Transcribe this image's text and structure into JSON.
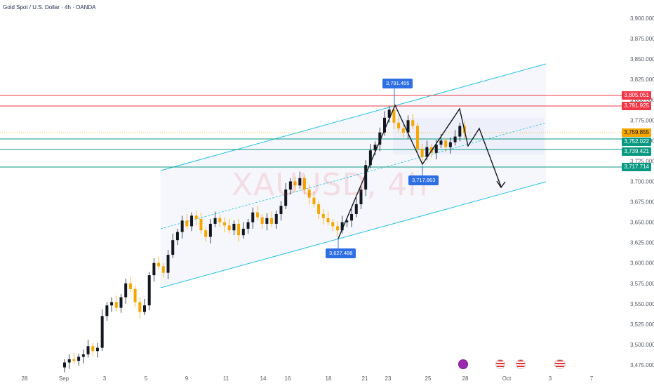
{
  "header": {
    "title": "Gold Spot / U.S. Dollar · 4h · OANDA"
  },
  "watermark": "XAUUSD, 4h",
  "colors": {
    "up": "#131722",
    "down": "#f7a600",
    "channel": "#22c3dd",
    "resistance": "#f23645",
    "support": "#089981",
    "callout": "#2f6fe4",
    "current": "#f7a600"
  },
  "chart_data": {
    "type": "candlestick",
    "symbol": "XAUUSD",
    "timeframe": "4h",
    "ylim": [
      3470,
      3915
    ],
    "y_ticks": [
      3475,
      3500,
      3525,
      3550,
      3575,
      3600,
      3625,
      3650,
      3675,
      3700,
      3725,
      3750,
      3775,
      3800,
      3825,
      3850,
      3875,
      3900
    ],
    "y_tick_labels": [
      "3,475.000",
      "3,500.000",
      "3,525.000",
      "3,550.000",
      "3,575.000",
      "3,600.000",
      "3,625.000",
      "3,650.000",
      "3,675.000",
      "3,700.000",
      "3,725.000",
      "3,750.000",
      "3,775.000",
      "3,800.000",
      "3,825.000",
      "3,850.000",
      "3,875.000",
      "3,900.000"
    ],
    "x_labels": [
      "28",
      "Sep",
      "3",
      "5",
      "9",
      "11",
      "14",
      "16",
      "18",
      "21",
      "23",
      "25",
      "28",
      "Oct",
      "3",
      "7"
    ],
    "series_close": [
      3478,
      3482,
      3480,
      3485,
      3488,
      3498,
      3492,
      3496,
      3535,
      3548,
      3552,
      3545,
      3558,
      3575,
      3568,
      3552,
      3540,
      3548,
      3585,
      3600,
      3596,
      3588,
      3610,
      3628,
      3638,
      3652,
      3645,
      3658,
      3654,
      3640,
      3632,
      3648,
      3655,
      3650,
      3646,
      3640,
      3648,
      3634,
      3642,
      3650,
      3662,
      3656,
      3648,
      3655,
      3648,
      3660,
      3670,
      3690,
      3700,
      3695,
      3704,
      3690,
      3680,
      3672,
      3660,
      3655,
      3650,
      3645,
      3640,
      3650,
      3652,
      3660,
      3672,
      3690,
      3720,
      3738,
      3745,
      3760,
      3778,
      3788,
      3772,
      3765,
      3760,
      3775,
      3768,
      3740,
      3730,
      3742,
      3735,
      3745,
      3750,
      3742,
      3748,
      3755,
      3768,
      3760
    ],
    "levels": [
      {
        "label": "3,805.051",
        "value": 3805.051,
        "kind": "resistance"
      },
      {
        "label": "3,791.925",
        "value": 3791.925,
        "kind": "resistance"
      },
      {
        "label": "3,759.855",
        "value": 3759.855,
        "kind": "current"
      },
      {
        "label": "3,752.022",
        "value": 3752.022,
        "kind": "support"
      },
      {
        "label": "3,739.421",
        "value": 3739.421,
        "kind": "support"
      },
      {
        "label": "3,717.714",
        "value": 3717.714,
        "kind": "support"
      }
    ],
    "callouts": [
      {
        "label": "3,791.455",
        "value": 3791.455,
        "kind": "high"
      },
      {
        "label": "3,717.863",
        "value": 3717.863,
        "kind": "low"
      },
      {
        "label": "3,627.488",
        "value": 3627.488,
        "kind": "low"
      }
    ],
    "grid": false,
    "legend": "none"
  }
}
